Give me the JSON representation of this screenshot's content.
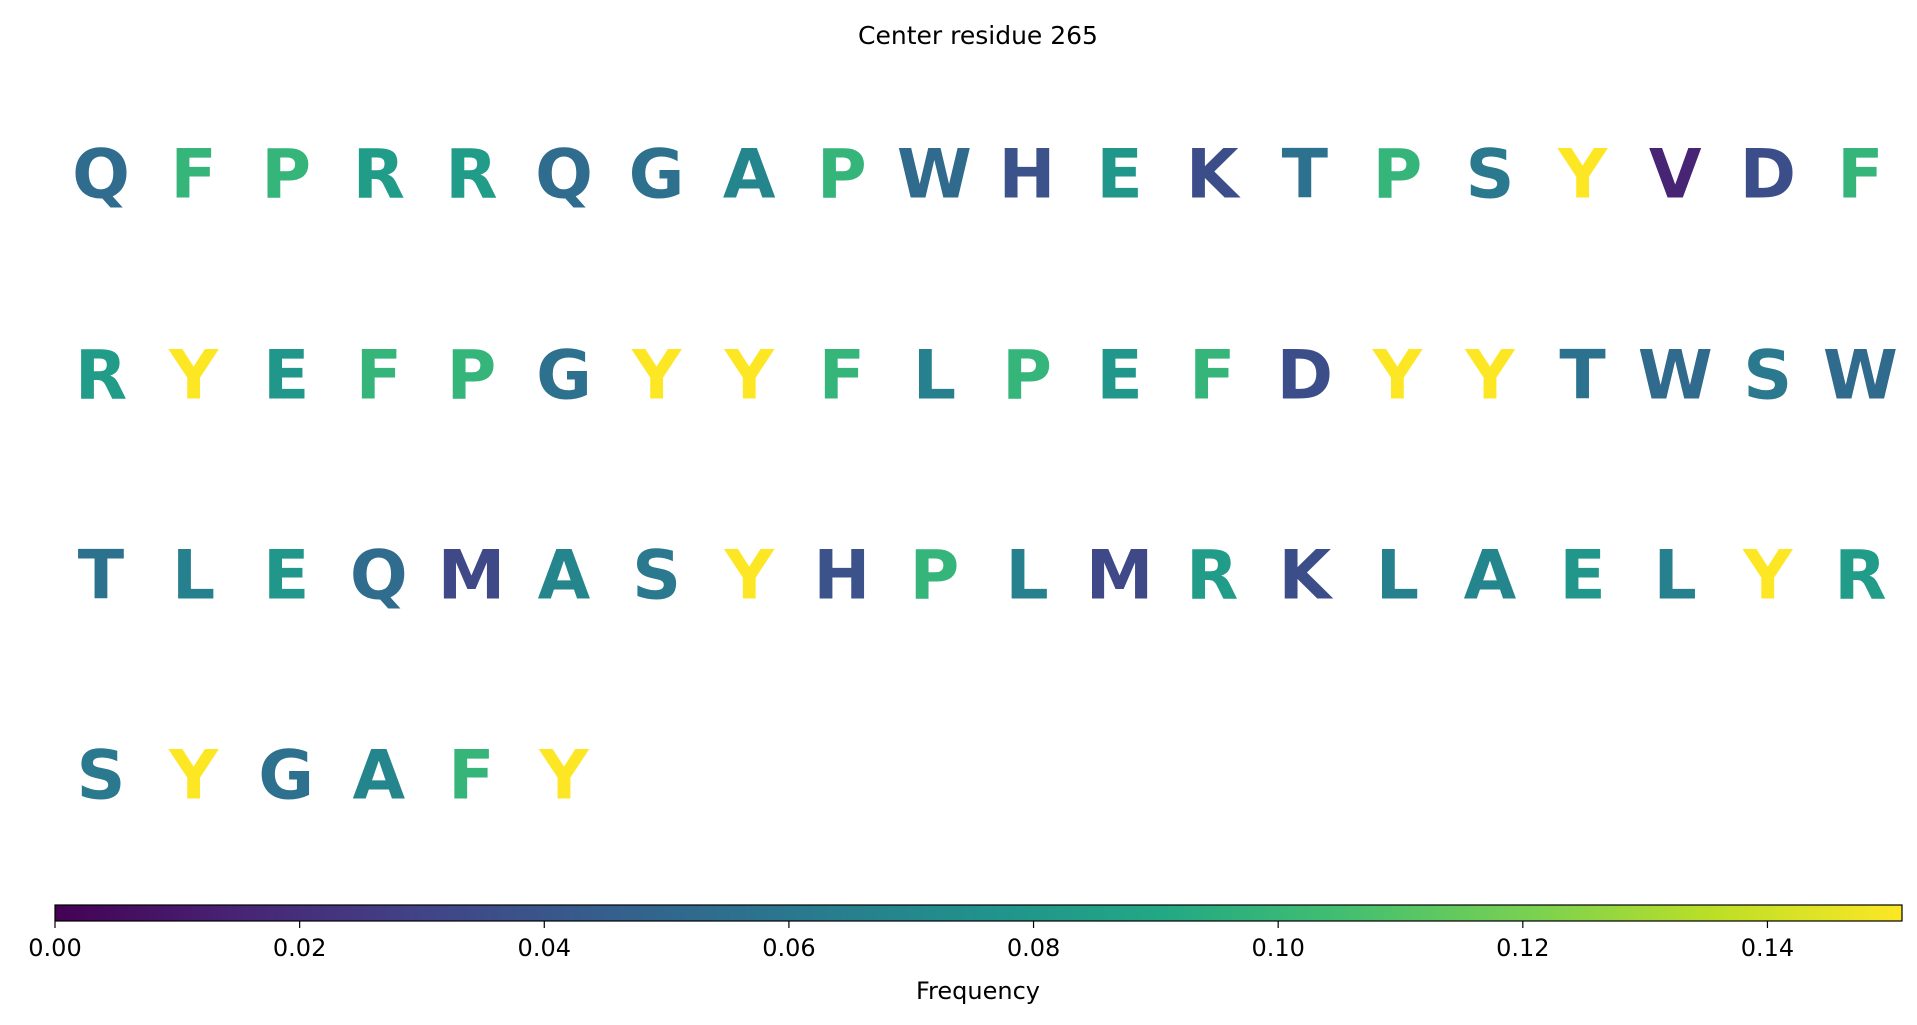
{
  "chart_data": {
    "type": "sequence",
    "title": "Center residue 265",
    "colormap": "viridis",
    "categories": [
      "Q",
      "F",
      "P",
      "R",
      "R",
      "Q",
      "G",
      "A",
      "P",
      "W",
      "H",
      "E",
      "K",
      "T",
      "P",
      "S",
      "Y",
      "V",
      "D",
      "F",
      "R",
      "Y",
      "E",
      "F",
      "P",
      "G",
      "Y",
      "Y",
      "F",
      "L",
      "P",
      "E",
      "F",
      "D",
      "Y",
      "Y",
      "T",
      "W",
      "S",
      "W",
      "T",
      "L",
      "E",
      "Q",
      "M",
      "A",
      "S",
      "Y",
      "H",
      "P",
      "L",
      "M",
      "R",
      "K",
      "L",
      "A",
      "E",
      "L",
      "Y",
      "R",
      "S",
      "Y",
      "G",
      "A",
      "F",
      "Y"
    ],
    "values": [
      0.053,
      0.099,
      0.099,
      0.083,
      0.083,
      0.053,
      0.056,
      0.068,
      0.099,
      0.052,
      0.038,
      0.079,
      0.036,
      0.057,
      0.099,
      0.061,
      0.151,
      0.015,
      0.036,
      0.099,
      0.083,
      0.151,
      0.079,
      0.099,
      0.099,
      0.056,
      0.151,
      0.151,
      0.099,
      0.065,
      0.099,
      0.079,
      0.099,
      0.036,
      0.151,
      0.151,
      0.057,
      0.052,
      0.061,
      0.052,
      0.057,
      0.065,
      0.079,
      0.053,
      0.033,
      0.068,
      0.061,
      0.151,
      0.038,
      0.099,
      0.065,
      0.033,
      0.083,
      0.036,
      0.065,
      0.068,
      0.079,
      0.065,
      0.151,
      0.083,
      0.061,
      0.151,
      0.056,
      0.068,
      0.099,
      0.151
    ],
    "colorbar_label": "Frequency",
    "clim": [
      0,
      0.151
    ],
    "cticks": [
      {
        "value": 0,
        "label": "0.00"
      },
      {
        "value": 0.02,
        "label": "0.02"
      },
      {
        "value": 0.04,
        "label": "0.04"
      },
      {
        "value": 0.06,
        "label": "0.06"
      },
      {
        "value": 0.08,
        "label": "0.08"
      },
      {
        "value": 0.1,
        "label": "0.10"
      },
      {
        "value": 0.12,
        "label": "0.12"
      },
      {
        "value": 0.14,
        "label": "0.14"
      }
    ]
  }
}
